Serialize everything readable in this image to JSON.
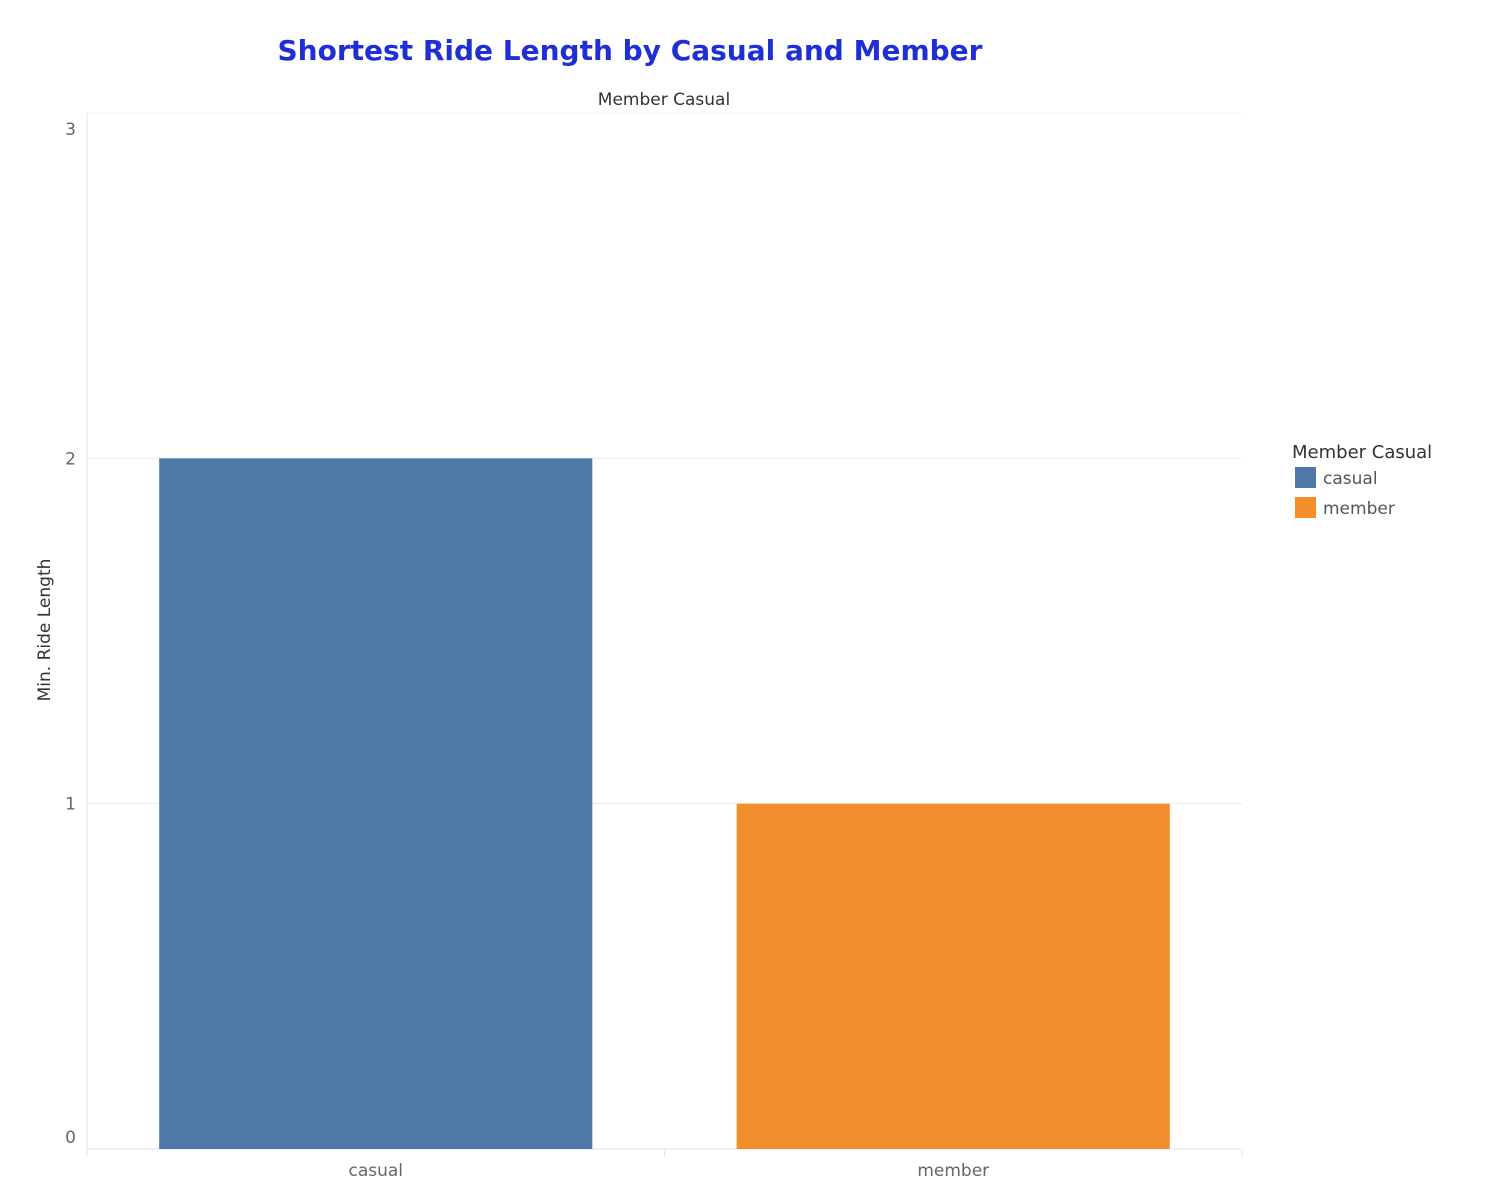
{
  "chart_data": {
    "type": "bar",
    "title": "Shortest Ride Length by Casual and Member",
    "column_header": "Member Casual",
    "xlabel": "",
    "ylabel": "Min. Ride Length",
    "categories": [
      "casual",
      "member"
    ],
    "values": [
      2,
      1
    ],
    "colors": [
      "#4e79a7",
      "#f28e2c"
    ],
    "ylim": [
      0,
      3
    ],
    "yticks": [
      0,
      1,
      2,
      3
    ],
    "grid": true,
    "legend": {
      "title": "Member Casual",
      "placement": "right",
      "entries": [
        {
          "label": "casual",
          "color": "#4e79a7"
        },
        {
          "label": "member",
          "color": "#f28e2c"
        }
      ]
    }
  }
}
